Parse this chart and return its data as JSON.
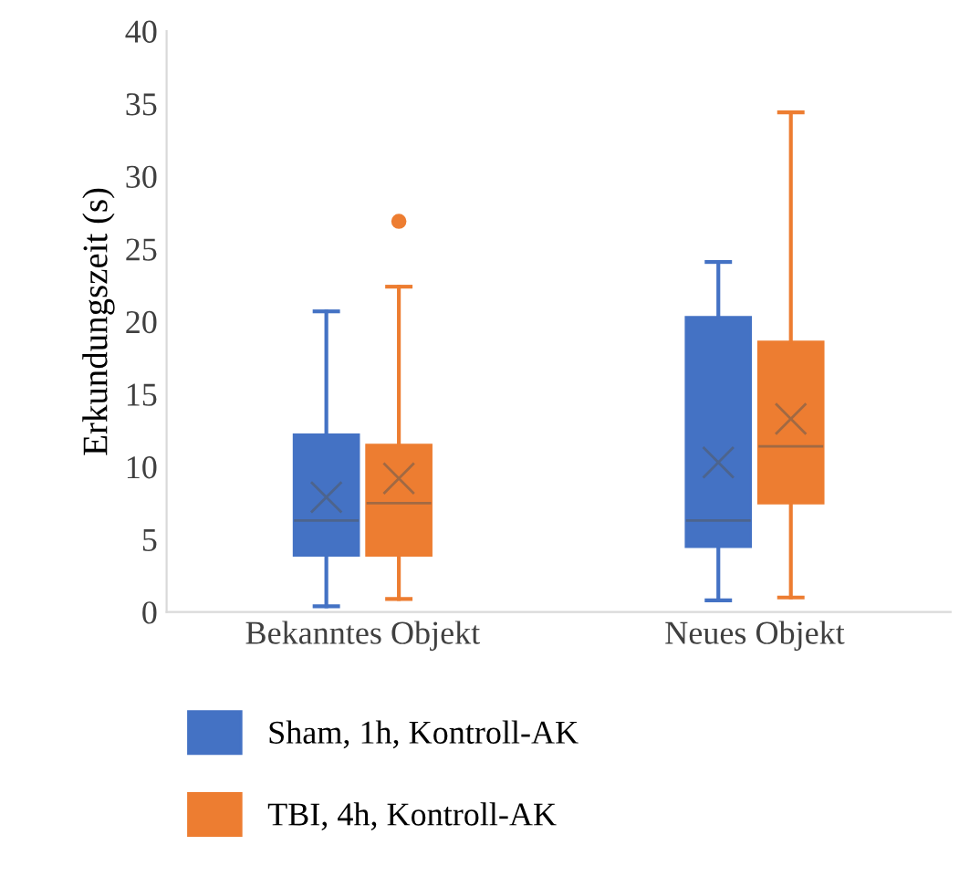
{
  "chart_data": {
    "type": "box",
    "ylabel": "Erkundungszeit (s)",
    "categories": [
      "Bekanntes Objekt",
      "Neues Objekt"
    ],
    "ylim": [
      0,
      40
    ],
    "yticks": [
      0,
      5,
      10,
      15,
      20,
      25,
      30,
      35,
      40
    ],
    "grid": false,
    "legend": "bottom",
    "series": [
      {
        "name": "Sham, 1h, Kontroll-AK",
        "color": "#4472c4",
        "boxes": [
          {
            "low": 0.4,
            "q1": 3.9,
            "median": 6.3,
            "q3": 12.2,
            "high": 20.7,
            "mean": 7.9
          },
          {
            "low": 0.8,
            "q1": 4.5,
            "median": 6.3,
            "q3": 20.3,
            "high": 24.1,
            "mean": 10.3
          }
        ]
      },
      {
        "name": "TBI, 4h, Kontroll-AK",
        "color": "#ed7d31",
        "boxes": [
          {
            "low": 0.9,
            "q1": 3.9,
            "median": 7.5,
            "q3": 11.5,
            "high": 22.4,
            "mean": 9.2,
            "outliers": [
              26.9
            ]
          },
          {
            "low": 1.0,
            "q1": 7.5,
            "median": 11.4,
            "q3": 18.6,
            "high": 34.4,
            "mean": 13.3
          }
        ]
      }
    ]
  }
}
